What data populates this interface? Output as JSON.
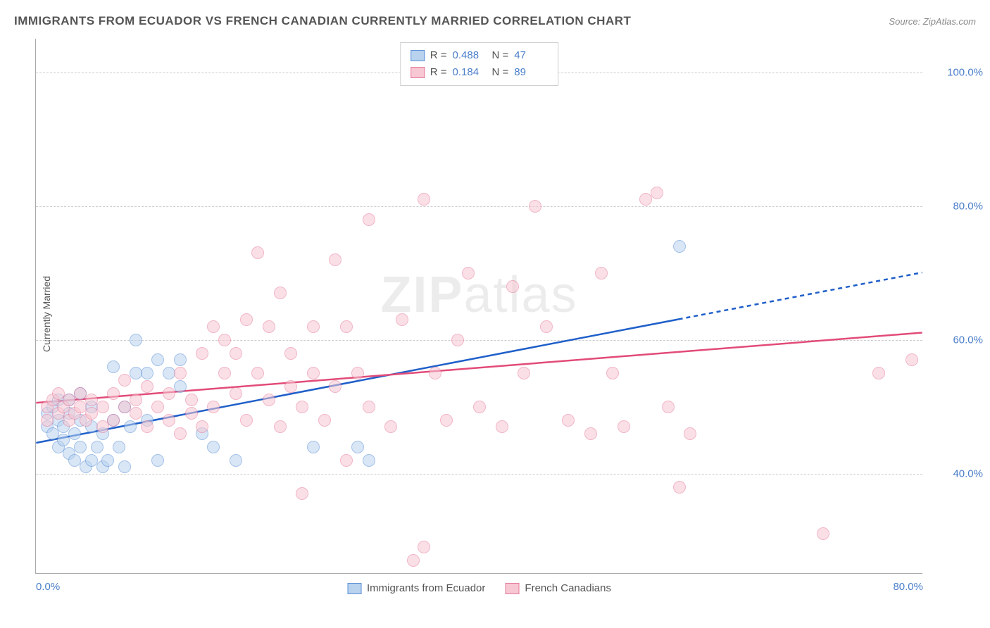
{
  "title": "IMMIGRANTS FROM ECUADOR VS FRENCH CANADIAN CURRENTLY MARRIED CORRELATION CHART",
  "source": "Source: ZipAtlas.com",
  "ylabel": "Currently Married",
  "watermark": {
    "part1": "ZIP",
    "part2": "atlas"
  },
  "chart": {
    "type": "scatter",
    "background_color": "#ffffff",
    "grid_color": "#cccccc",
    "axis_color": "#aaaaaa",
    "tick_color": "#4a7ec9",
    "tick_fontsize": 15,
    "xlim": [
      0,
      80
    ],
    "ylim": [
      25,
      105
    ],
    "xticks": [
      {
        "v": 0,
        "l": "0.0%"
      },
      {
        "v": 80,
        "l": "80.0%"
      }
    ],
    "yticks": [
      {
        "v": 40,
        "l": "40.0%"
      },
      {
        "v": 60,
        "l": "60.0%"
      },
      {
        "v": 80,
        "l": "80.0%"
      },
      {
        "v": 100,
        "l": "100.0%"
      }
    ],
    "marker_size": 18,
    "marker_opacity": 0.55,
    "series": [
      {
        "name": "Immigrants from Ecuador",
        "fill": "#b9d3ef",
        "stroke": "#5b8fd6",
        "trend_color": "#1f5fc9",
        "trend_width": 2.5,
        "R": "0.488",
        "N": "47",
        "trend": {
          "x1": 0,
          "y1": 44.5,
          "x2_solid": 58,
          "y2_solid": 63.0,
          "x2": 80,
          "y2": 70.0
        },
        "points": [
          [
            1,
            47
          ],
          [
            1,
            49
          ],
          [
            1.5,
            46
          ],
          [
            1.5,
            50
          ],
          [
            2,
            44
          ],
          [
            2,
            48
          ],
          [
            2,
            51
          ],
          [
            2.5,
            45
          ],
          [
            2.5,
            47
          ],
          [
            3,
            43
          ],
          [
            3,
            49
          ],
          [
            3,
            51
          ],
          [
            3.5,
            42
          ],
          [
            3.5,
            46
          ],
          [
            4,
            44
          ],
          [
            4,
            48
          ],
          [
            4,
            52
          ],
          [
            4.5,
            41
          ],
          [
            5,
            42
          ],
          [
            5,
            47
          ],
          [
            5,
            50
          ],
          [
            5.5,
            44
          ],
          [
            6,
            41
          ],
          [
            6,
            46
          ],
          [
            6.5,
            42
          ],
          [
            7,
            48
          ],
          [
            7,
            56
          ],
          [
            7.5,
            44
          ],
          [
            8,
            41
          ],
          [
            8,
            50
          ],
          [
            8.5,
            47
          ],
          [
            9,
            60
          ],
          [
            9,
            55
          ],
          [
            10,
            55
          ],
          [
            10,
            48
          ],
          [
            11,
            42
          ],
          [
            11,
            57
          ],
          [
            12,
            55
          ],
          [
            13,
            53
          ],
          [
            13,
            57
          ],
          [
            15,
            46
          ],
          [
            16,
            44
          ],
          [
            18,
            42
          ],
          [
            25,
            44
          ],
          [
            29,
            44
          ],
          [
            30,
            42
          ],
          [
            58,
            74
          ]
        ]
      },
      {
        "name": "French Canadians",
        "fill": "#f7c8d3",
        "stroke": "#e67a9a",
        "trend_color": "#e24b78",
        "trend_width": 2.5,
        "R": "0.184",
        "N": "89",
        "trend": {
          "x1": 0,
          "y1": 50.5,
          "x2_solid": 80,
          "y2_solid": 61.0,
          "x2": 80,
          "y2": 61.0
        },
        "points": [
          [
            1,
            50
          ],
          [
            1,
            48
          ],
          [
            1.5,
            51
          ],
          [
            2,
            49
          ],
          [
            2,
            52
          ],
          [
            2.5,
            50
          ],
          [
            3,
            48
          ],
          [
            3,
            51
          ],
          [
            3.5,
            49
          ],
          [
            4,
            52
          ],
          [
            4,
            50
          ],
          [
            4.5,
            48
          ],
          [
            5,
            51
          ],
          [
            5,
            49
          ],
          [
            6,
            50
          ],
          [
            6,
            47
          ],
          [
            7,
            52
          ],
          [
            7,
            48
          ],
          [
            8,
            50
          ],
          [
            8,
            54
          ],
          [
            9,
            49
          ],
          [
            9,
            51
          ],
          [
            10,
            47
          ],
          [
            10,
            53
          ],
          [
            11,
            50
          ],
          [
            12,
            48
          ],
          [
            12,
            52
          ],
          [
            13,
            46
          ],
          [
            13,
            55
          ],
          [
            14,
            49
          ],
          [
            14,
            51
          ],
          [
            15,
            47
          ],
          [
            15,
            58
          ],
          [
            16,
            50
          ],
          [
            16,
            62
          ],
          [
            17,
            55
          ],
          [
            17,
            60
          ],
          [
            18,
            52
          ],
          [
            18,
            58
          ],
          [
            19,
            48
          ],
          [
            19,
            63
          ],
          [
            20,
            73
          ],
          [
            20,
            55
          ],
          [
            21,
            51
          ],
          [
            21,
            62
          ],
          [
            22,
            47
          ],
          [
            22,
            67
          ],
          [
            23,
            58
          ],
          [
            23,
            53
          ],
          [
            24,
            50
          ],
          [
            24,
            37
          ],
          [
            25,
            62
          ],
          [
            25,
            55
          ],
          [
            26,
            48
          ],
          [
            27,
            72
          ],
          [
            27,
            53
          ],
          [
            28,
            42
          ],
          [
            28,
            62
          ],
          [
            29,
            55
          ],
          [
            30,
            78
          ],
          [
            30,
            50
          ],
          [
            32,
            47
          ],
          [
            33,
            63
          ],
          [
            34,
            27
          ],
          [
            35,
            29
          ],
          [
            35,
            81
          ],
          [
            36,
            55
          ],
          [
            37,
            48
          ],
          [
            38,
            60
          ],
          [
            39,
            70
          ],
          [
            40,
            50
          ],
          [
            42,
            47
          ],
          [
            43,
            68
          ],
          [
            44,
            55
          ],
          [
            45,
            80
          ],
          [
            46,
            62
          ],
          [
            48,
            48
          ],
          [
            50,
            46
          ],
          [
            51,
            70
          ],
          [
            52,
            55
          ],
          [
            53,
            47
          ],
          [
            55,
            81
          ],
          [
            56,
            82
          ],
          [
            57,
            50
          ],
          [
            58,
            38
          ],
          [
            59,
            46
          ],
          [
            71,
            31
          ],
          [
            76,
            55
          ],
          [
            79,
            57
          ]
        ]
      }
    ],
    "legend_box": {
      "border_color": "#d0d0d0",
      "R_label": "R =",
      "N_label": "N ="
    },
    "bottom_legend_labels": [
      "Immigrants from Ecuador",
      "French Canadians"
    ]
  }
}
